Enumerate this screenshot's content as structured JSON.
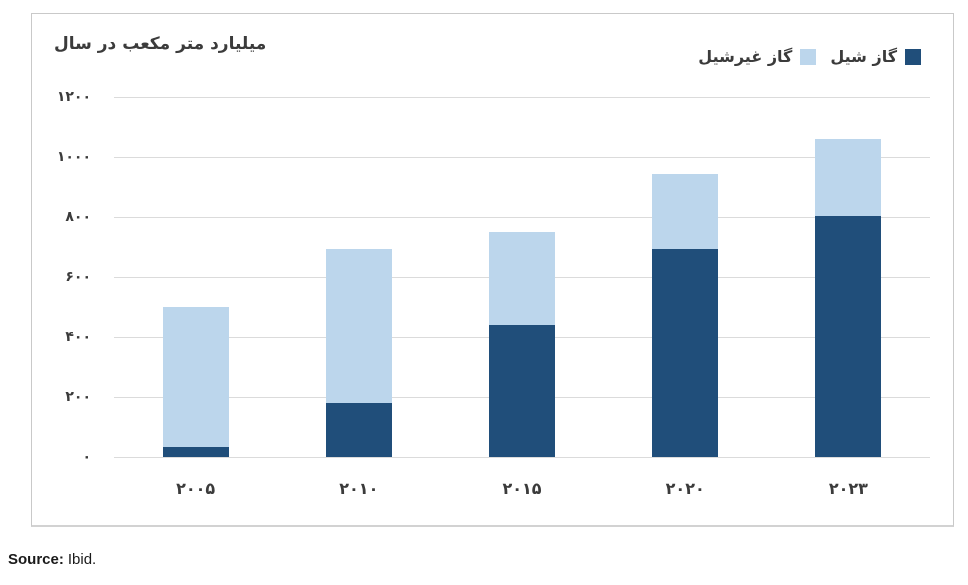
{
  "chart_data": {
    "type": "bar",
    "stacked": true,
    "rtl": true,
    "title": "میلیارد متر مکعب در سال",
    "title_translation": "billion cubic meters per year",
    "categories": [
      "۲۰۰۵",
      "۲۰۱۰",
      "۲۰۱۵",
      "۲۰۲۰",
      "۲۰۲۳"
    ],
    "categories_western": [
      2005,
      2010,
      2015,
      2020,
      2023
    ],
    "series": [
      {
        "name": "گاز شیل",
        "color": "#204e7a",
        "values": [
          35,
          180,
          440,
          695,
          805
        ]
      },
      {
        "name": "گاز غیرشیل",
        "color": "#bcd6ec",
        "values": [
          465,
          515,
          310,
          250,
          255
        ]
      }
    ],
    "totals": [
      500,
      695,
      750,
      945,
      1060
    ],
    "ylim": [
      0,
      1200
    ],
    "yticks": [
      {
        "value": 0,
        "label": "۰"
      },
      {
        "value": 200,
        "label": "۲۰۰"
      },
      {
        "value": 400,
        "label": "۴۰۰"
      },
      {
        "value": 600,
        "label": "۶۰۰"
      },
      {
        "value": 800,
        "label": "۸۰۰"
      },
      {
        "value": 1000,
        "label": "۱۰۰۰"
      },
      {
        "value": 1200,
        "label": "۱۲۰۰"
      }
    ],
    "grid": true,
    "legend_position": "top-right",
    "gridline_color": "#dbdbdb"
  },
  "source": {
    "label": "Source:",
    "text": "Ibid."
  }
}
